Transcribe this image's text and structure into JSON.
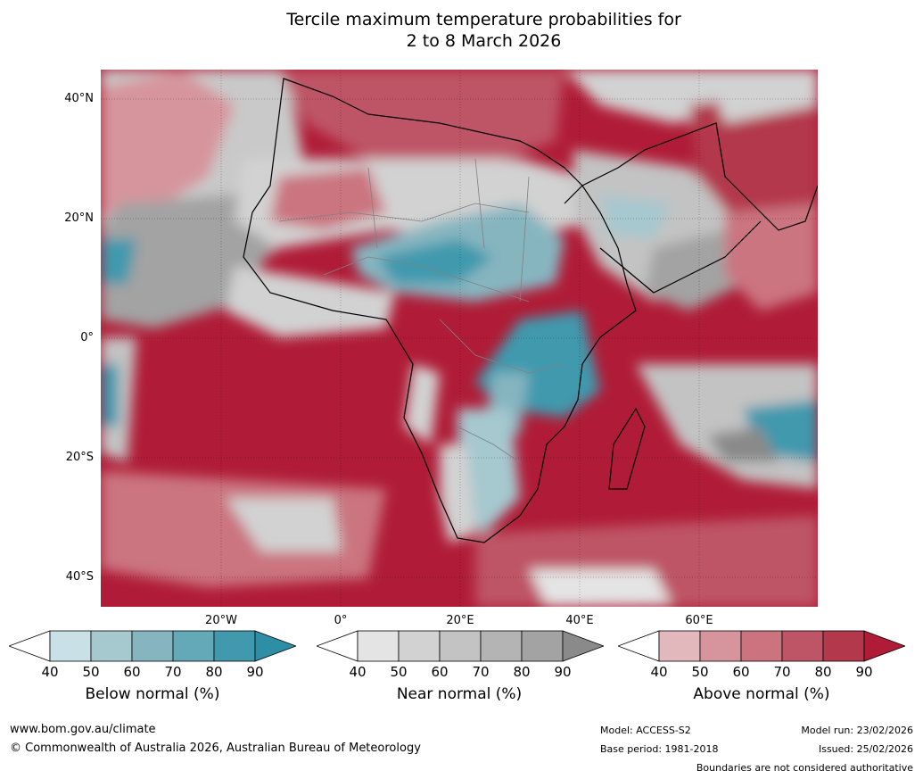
{
  "title": {
    "line1": "Tercile maximum temperature probabilities for",
    "line2": "2 to 8 March 2026"
  },
  "lat_labels": [
    "40°N",
    "20°N",
    "0°",
    "20°S",
    "40°S"
  ],
  "lon_labels": [
    "20°W",
    "0°",
    "20°E",
    "40°E",
    "60°E"
  ],
  "colorbars": [
    {
      "label": "Below normal (%)",
      "ticks": [
        "40",
        "50",
        "60",
        "70",
        "80",
        "90"
      ],
      "colors": [
        "#ffffff",
        "#c8e0e6",
        "#a6c8cf",
        "#86b5c0",
        "#64a9b8",
        "#4199ad",
        "#2e8ea5"
      ]
    },
    {
      "label": "Near normal (%)",
      "ticks": [
        "40",
        "50",
        "60",
        "70",
        "80",
        "90"
      ],
      "colors": [
        "#ffffff",
        "#e4e4e4",
        "#d2d2d2",
        "#c3c3c3",
        "#b4b4b4",
        "#a3a3a3",
        "#8a8a8a"
      ]
    },
    {
      "label": "Above normal (%)",
      "ticks": [
        "40",
        "50",
        "60",
        "70",
        "80",
        "90"
      ],
      "colors": [
        "#ffffff",
        "#e2b8bd",
        "#d6959c",
        "#cb7480",
        "#be5566",
        "#b3384c",
        "#b01c37"
      ]
    }
  ],
  "footer": {
    "website": "www.bom.gov.au/climate",
    "copyright": "© Commonwealth of Australia 2026, Australian Bureau of Meteorology",
    "model": "Model: ACCESS-S2",
    "base_period": "Base period: 1981-2018",
    "model_run": "Model run: 23/02/2026",
    "issued": "Issued: 25/02/2026",
    "disclaimer": "Boundaries are not considered authoritative"
  }
}
